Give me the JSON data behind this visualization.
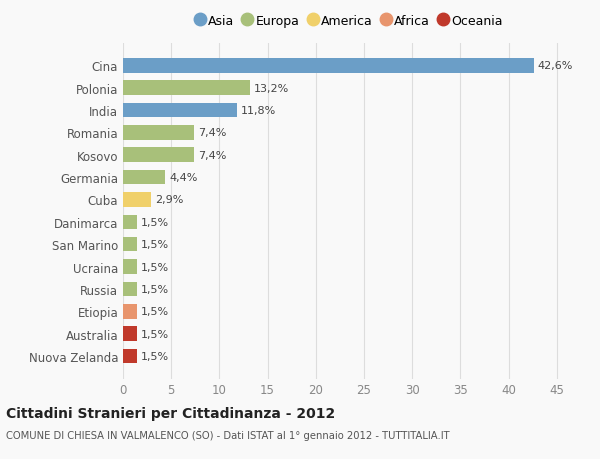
{
  "categories": [
    "Nuova Zelanda",
    "Australia",
    "Etiopia",
    "Russia",
    "Ucraina",
    "San Marino",
    "Danimarca",
    "Cuba",
    "Germania",
    "Kosovo",
    "Romania",
    "India",
    "Polonia",
    "Cina"
  ],
  "values": [
    1.5,
    1.5,
    1.5,
    1.5,
    1.5,
    1.5,
    1.5,
    2.9,
    4.4,
    7.4,
    7.4,
    11.8,
    13.2,
    42.6
  ],
  "labels": [
    "1,5%",
    "1,5%",
    "1,5%",
    "1,5%",
    "1,5%",
    "1,5%",
    "1,5%",
    "2,9%",
    "4,4%",
    "7,4%",
    "7,4%",
    "11,8%",
    "13,2%",
    "42,6%"
  ],
  "colors": [
    "#c0392b",
    "#c0392b",
    "#e8956d",
    "#a8c07a",
    "#a8c07a",
    "#a8c07a",
    "#a8c07a",
    "#f0d06a",
    "#a8c07a",
    "#a8c07a",
    "#a8c07a",
    "#6b9ec7",
    "#a8c07a",
    "#6b9ec7"
  ],
  "legend": [
    {
      "label": "Asia",
      "color": "#6b9ec7"
    },
    {
      "label": "Europa",
      "color": "#a8c07a"
    },
    {
      "label": "America",
      "color": "#f0d06a"
    },
    {
      "label": "Africa",
      "color": "#e8956d"
    },
    {
      "label": "Oceania",
      "color": "#c0392b"
    }
  ],
  "title_bold": "Cittadini Stranieri per Cittadinanza - 2012",
  "subtitle": "COMUNE DI CHIESA IN VALMALENCO (SO) - Dati ISTAT al 1° gennaio 2012 - TUTTITALIA.IT",
  "xlim": [
    0,
    47
  ],
  "xticks": [
    0,
    5,
    10,
    15,
    20,
    25,
    30,
    35,
    40,
    45
  ],
  "background_color": "#f9f9f9",
  "grid_color": "#dddddd"
}
